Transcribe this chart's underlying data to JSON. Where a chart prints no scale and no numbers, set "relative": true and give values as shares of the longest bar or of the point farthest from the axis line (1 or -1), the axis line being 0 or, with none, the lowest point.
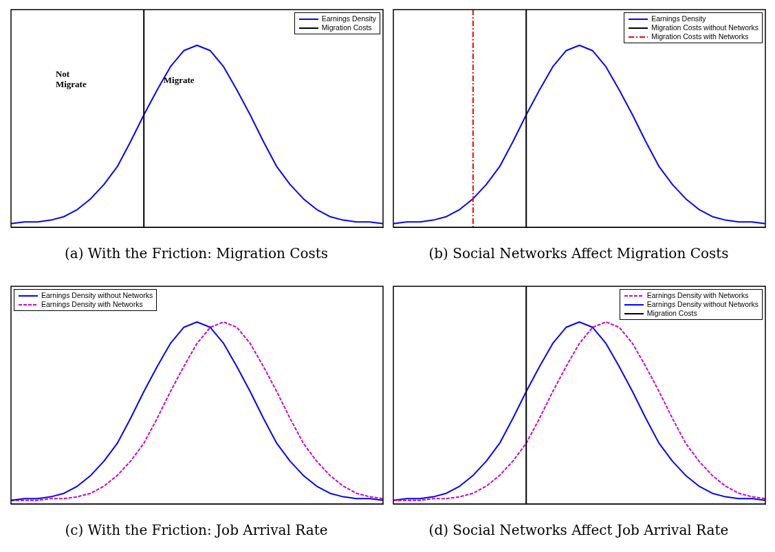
{
  "chart_data": [
    {
      "type": "line",
      "title": "(a) With the Friction: Migration Costs",
      "relative": true,
      "tick_labels": false,
      "marker": "none",
      "legend": "top right",
      "categories": [
        null,
        null,
        null,
        null,
        null,
        null,
        null,
        null,
        null,
        null,
        null,
        null,
        null,
        null,
        null,
        null,
        null,
        null,
        null,
        null,
        null,
        null,
        null,
        null,
        null,
        null,
        null,
        null,
        null
      ],
      "series": [
        {
          "name": "Earnings Density",
          "color": "#0000ff",
          "line_style": "solid",
          "values": [
            0,
            0.01,
            0.01,
            0.02,
            0.04,
            0.08,
            0.14,
            0.22,
            0.32,
            0.46,
            0.61,
            0.75,
            0.88,
            0.97,
            1,
            0.97,
            0.88,
            0.75,
            0.61,
            0.46,
            0.32,
            0.22,
            0.14,
            0.08,
            0.04,
            0.02,
            0.01,
            0.01,
            0
          ]
        }
      ],
      "ref_lines": [
        {
          "axis": "x",
          "label": "Migration Costs",
          "color": "#000000",
          "line_style": "solid"
        }
      ],
      "annotations": [
        "Not Migrate",
        "Migrate"
      ]
    },
    {
      "type": "line",
      "title": "(b) Social Networks Affect Migration Costs",
      "relative": true,
      "tick_labels": false,
      "marker": "none",
      "legend": "top right",
      "categories": [
        null,
        null,
        null,
        null,
        null,
        null,
        null,
        null,
        null,
        null,
        null,
        null,
        null,
        null,
        null,
        null,
        null,
        null,
        null,
        null,
        null,
        null,
        null,
        null,
        null,
        null,
        null,
        null,
        null
      ],
      "series": [
        {
          "name": "Earnings Density",
          "color": "#0000ff",
          "line_style": "solid",
          "values": [
            0,
            0.01,
            0.01,
            0.02,
            0.04,
            0.08,
            0.14,
            0.22,
            0.32,
            0.46,
            0.61,
            0.75,
            0.88,
            0.97,
            1,
            0.97,
            0.88,
            0.75,
            0.61,
            0.46,
            0.32,
            0.22,
            0.14,
            0.08,
            0.04,
            0.02,
            0.01,
            0.01,
            0
          ]
        }
      ],
      "ref_lines": [
        {
          "axis": "x",
          "label": "Migration Costs without Networks",
          "color": "#000000",
          "line_style": "solid"
        },
        {
          "axis": "x",
          "label": "Migration Costs with Networks",
          "color": "#ff0000",
          "line_style": "dashed"
        }
      ]
    },
    {
      "type": "line",
      "title": "(c) With the Friction: Job Arrival Rate",
      "relative": true,
      "tick_labels": false,
      "marker": "none",
      "legend": "top left",
      "categories": [
        null,
        null,
        null,
        null,
        null,
        null,
        null,
        null,
        null,
        null,
        null,
        null,
        null,
        null,
        null,
        null,
        null,
        null,
        null,
        null,
        null,
        null,
        null,
        null,
        null,
        null,
        null,
        null,
        null
      ],
      "series": [
        {
          "name": "Earnings Density without Networks",
          "color": "#0000ff",
          "line_style": "solid",
          "values": [
            0,
            0.01,
            0.01,
            0.02,
            0.04,
            0.08,
            0.14,
            0.22,
            0.32,
            0.46,
            0.61,
            0.75,
            0.88,
            0.97,
            1,
            0.97,
            0.88,
            0.75,
            0.61,
            0.46,
            0.32,
            0.22,
            0.14,
            0.08,
            0.04,
            0.02,
            0.01,
            0.01,
            0
          ]
        },
        {
          "name": "Earnings Density with Networks",
          "color": "#cc00cc",
          "line_style": "dashed",
          "values": [
            0,
            0,
            0,
            0.01,
            0.01,
            0.02,
            0.04,
            0.08,
            0.14,
            0.22,
            0.32,
            0.46,
            0.61,
            0.75,
            0.88,
            0.97,
            1,
            0.97,
            0.88,
            0.75,
            0.61,
            0.46,
            0.32,
            0.22,
            0.14,
            0.08,
            0.04,
            0.02,
            0.01
          ]
        }
      ]
    },
    {
      "type": "line",
      "title": "(d) Social Networks Affect Job Arrival Rate",
      "relative": true,
      "tick_labels": false,
      "marker": "none",
      "legend": "top right",
      "categories": [
        null,
        null,
        null,
        null,
        null,
        null,
        null,
        null,
        null,
        null,
        null,
        null,
        null,
        null,
        null,
        null,
        null,
        null,
        null,
        null,
        null,
        null,
        null,
        null,
        null,
        null,
        null,
        null,
        null
      ],
      "series": [
        {
          "name": "Earnings Density with Networks",
          "color": "#cc00cc",
          "line_style": "dashed",
          "values": [
            0,
            0,
            0,
            0.01,
            0.01,
            0.02,
            0.04,
            0.08,
            0.14,
            0.22,
            0.32,
            0.46,
            0.61,
            0.75,
            0.88,
            0.97,
            1,
            0.97,
            0.88,
            0.75,
            0.61,
            0.46,
            0.32,
            0.22,
            0.14,
            0.08,
            0.04,
            0.02,
            0.01
          ]
        },
        {
          "name": "Earnings Density without Networks",
          "color": "#0000ff",
          "line_style": "solid",
          "values": [
            0,
            0.01,
            0.01,
            0.02,
            0.04,
            0.08,
            0.14,
            0.22,
            0.32,
            0.46,
            0.61,
            0.75,
            0.88,
            0.97,
            1,
            0.97,
            0.88,
            0.75,
            0.61,
            0.46,
            0.32,
            0.22,
            0.14,
            0.08,
            0.04,
            0.02,
            0.01,
            0.01,
            0
          ]
        }
      ],
      "ref_lines": [
        {
          "axis": "x",
          "label": "Migration Costs",
          "color": "#000000",
          "line_style": "solid"
        }
      ]
    }
  ]
}
